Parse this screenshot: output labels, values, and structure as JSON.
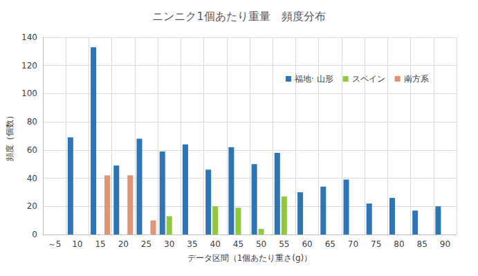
{
  "chart_data": {
    "type": "bar",
    "title": "ニンニク1個あたり重量　頻度分布",
    "x_label": "データ区間（1個あたり重さ(g)）",
    "y_label": "頻度（個数）",
    "categories": [
      "～5",
      "10",
      "15",
      "20",
      "25",
      "30",
      "35",
      "40",
      "45",
      "50",
      "55",
      "60",
      "65",
      "70",
      "75",
      "80",
      "85",
      "90"
    ],
    "series": [
      {
        "name": "福地· 山形",
        "color": "#2E75B6",
        "values": [
          null,
          69,
          133,
          49,
          68,
          59,
          64,
          46,
          62,
          50,
          58,
          30,
          34,
          39,
          22,
          26,
          17,
          20
        ]
      },
      {
        "name": "スペイン",
        "color": "#92C83E",
        "values": [
          null,
          null,
          null,
          null,
          null,
          13,
          null,
          20,
          19,
          4,
          27,
          null,
          null,
          null,
          null,
          null,
          null,
          null
        ]
      },
      {
        "name": "南方系",
        "color": "#DF9574",
        "values": [
          null,
          null,
          42,
          42,
          10,
          null,
          null,
          null,
          null,
          null,
          null,
          null,
          null,
          null,
          null,
          null,
          null,
          null
        ]
      }
    ],
    "ylim": [
      0,
      140
    ],
    "yticks": [
      0,
      20,
      40,
      60,
      80,
      100,
      120,
      140
    ],
    "grid": true,
    "legend": "upper right"
  }
}
